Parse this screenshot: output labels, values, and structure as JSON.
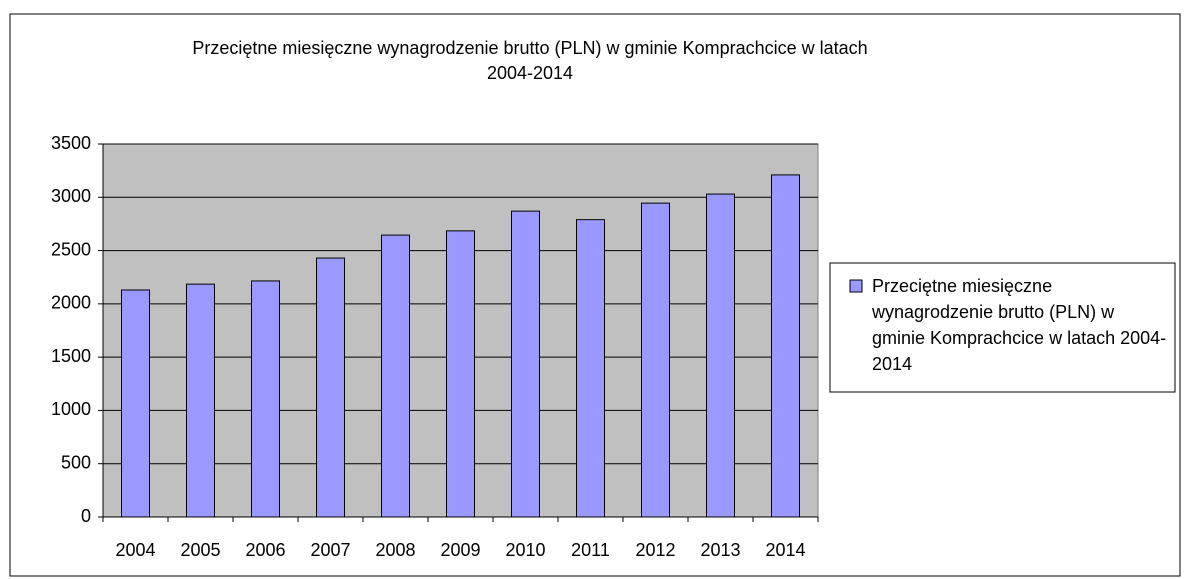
{
  "chart_data": {
    "type": "bar",
    "title": "Przeciętne miesięczne wynagrodzenie brutto (PLN) w gminie Komprachcice w latach 2004-2014",
    "categories": [
      "2004",
      "2005",
      "2006",
      "2007",
      "2008",
      "2009",
      "2010",
      "2011",
      "2012",
      "2013",
      "2014"
    ],
    "series": [
      {
        "name": "Przeciętne miesięczne wynagrodzenie brutto (PLN) w gminie Komprachcice w latach 2004-2014",
        "color": "#9999ff",
        "values": [
          2130,
          2185,
          2215,
          2430,
          2645,
          2685,
          2870,
          2790,
          2945,
          3030,
          3210
        ]
      }
    ],
    "ylim": [
      0,
      3500
    ],
    "yticks": [
      0,
      500,
      1000,
      1500,
      2000,
      2500,
      3000,
      3500
    ],
    "grid": true,
    "legend": "right"
  }
}
